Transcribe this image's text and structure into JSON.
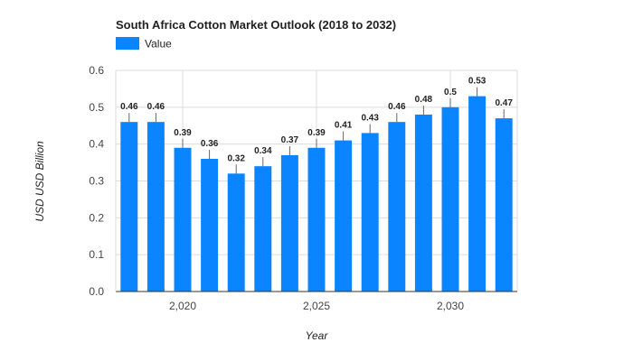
{
  "chart_data": {
    "type": "bar",
    "title": "South Africa Cotton Market Outlook (2018 to 2032)",
    "xlabel": "Year",
    "ylabel": "USD USD Billion",
    "series": [
      {
        "name": "Value",
        "x": [
          2018,
          2019,
          2020,
          2021,
          2022,
          2023,
          2024,
          2025,
          2026,
          2027,
          2028,
          2029,
          2030,
          2031,
          2032
        ],
        "values": [
          0.46,
          0.46,
          0.39,
          0.36,
          0.32,
          0.34,
          0.37,
          0.39,
          0.41,
          0.43,
          0.46,
          0.48,
          0.5,
          0.53,
          0.47
        ],
        "labels": [
          "0.46",
          "0.46",
          "0.39",
          "0.36",
          "0.32",
          "0.34",
          "0.37",
          "0.39",
          "0.41",
          "0.43",
          "0.46",
          "0.48",
          "0.5",
          "0.53",
          "0.47"
        ]
      }
    ],
    "x_ticks": [
      2020,
      2025,
      2030
    ],
    "x_tick_labels": [
      "2,020",
      "2,025",
      "2,030"
    ],
    "y_ticks": [
      0,
      0.1,
      0.2,
      0.3,
      0.4,
      0.5,
      0.6
    ],
    "y_tick_labels": [
      "0.0",
      "0.1",
      "0.2",
      "0.3",
      "0.4",
      "0.5",
      "0.6"
    ],
    "ylim": [
      0,
      0.6
    ],
    "xlim": [
      2017.5,
      2032.5
    ],
    "grid": true,
    "legend": "top-left",
    "colors": {
      "bar": "#0a84ff",
      "grid": "#dcdcdc",
      "axis": "#333333",
      "text": "#222222",
      "tick_text": "#444444"
    }
  }
}
